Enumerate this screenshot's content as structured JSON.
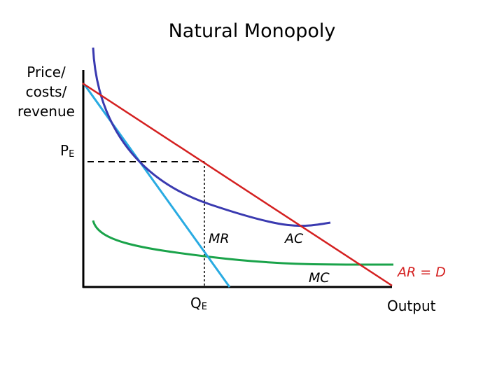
{
  "title": "Natural Monopoly",
  "y_axis_label": [
    "Price/",
    "costs/",
    "revenue"
  ],
  "x_axis_label": "Output",
  "price_label": {
    "main": "P",
    "sub": "E"
  },
  "quantity_label": {
    "main": "Q",
    "sub": "E"
  },
  "curve_labels": {
    "mr": "MR",
    "ac": "AC",
    "mc": "MC",
    "demand": "AR = D"
  }
}
